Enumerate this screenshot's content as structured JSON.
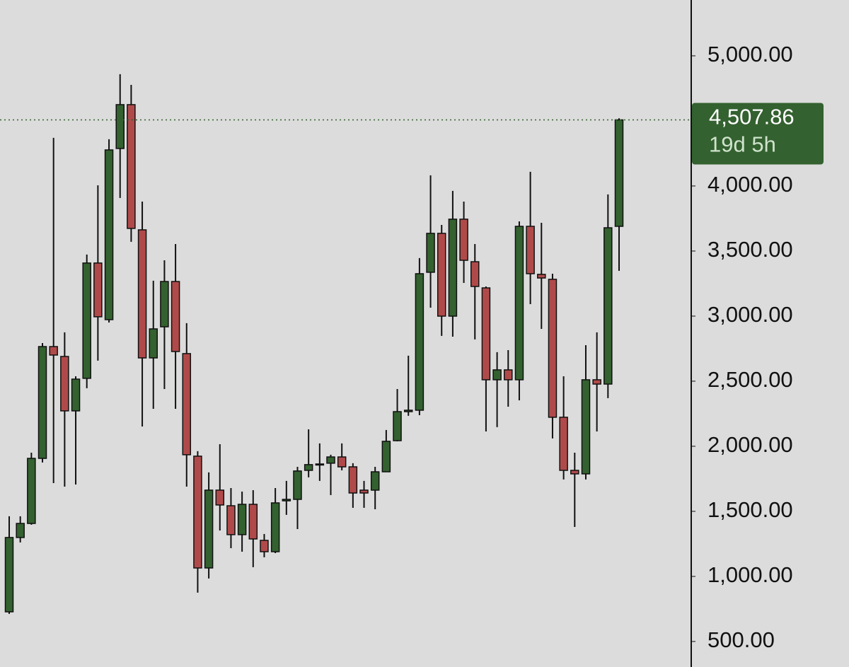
{
  "chart_data": {
    "type": "candlestick",
    "open": [
      728,
      1299,
      1407,
      1907,
      2766,
      2690,
      2272,
      2522,
      3408,
      2973,
      4288,
      4625,
      3663,
      2679,
      2918,
      3266,
      2712,
      1924,
      1065,
      1663,
      1543,
      1321,
      1554,
      1277,
      1190,
      1581,
      1592,
      1815,
      1859,
      1870,
      1918,
      1842,
      1663,
      1663,
      1804,
      2043,
      2266,
      2277,
      3337,
      3636,
      3000,
      3745,
      3418,
      3217,
      2511,
      2587,
      2511,
      3690,
      3321,
      3283,
      2223,
      1815,
      1788,
      2511,
      2478,
      3690
    ],
    "high": [
      1462,
      1462,
      1951,
      2793,
      4370,
      2875,
      2538,
      3473,
      4005,
      4359,
      4859,
      4777,
      3880,
      3272,
      3429,
      3554,
      2946,
      1962,
      1799,
      2016,
      1679,
      1652,
      1663,
      1326,
      1679,
      1734,
      1842,
      2130,
      2022,
      1935,
      2022,
      1870,
      1734,
      1842,
      2125,
      2440,
      2696,
      3446,
      4082,
      3701,
      3962,
      3880,
      3554,
      3228,
      2723,
      2739,
      3728,
      4109,
      3717,
      3326,
      2538,
      1951,
      2777,
      2875,
      3935,
      4520
    ],
    "low": [
      712,
      1261,
      1397,
      1875,
      1717,
      1690,
      1706,
      2446,
      2658,
      2951,
      3908,
      3571,
      2152,
      2288,
      2440,
      2288,
      1690,
      875,
      984,
      1353,
      1217,
      1190,
      1071,
      1147,
      1179,
      1473,
      1364,
      1761,
      1734,
      1625,
      1815,
      1527,
      1527,
      1516,
      1804,
      2038,
      2234,
      2239,
      3065,
      2848,
      2842,
      3255,
      2821,
      2114,
      2147,
      2304,
      2353,
      3092,
      2902,
      2060,
      1745,
      1380,
      1745,
      2114,
      2370,
      3348
    ],
    "close": [
      1299,
      1407,
      1907,
      2766,
      2701,
      2272,
      2516,
      3408,
      2995,
      4277,
      4625,
      3674,
      2679,
      2902,
      3266,
      2728,
      1935,
      1065,
      1663,
      1549,
      1321,
      1554,
      1288,
      1190,
      1565,
      1592,
      1810,
      1859,
      1864,
      1918,
      1842,
      1641,
      1641,
      1804,
      2038,
      2266,
      2277,
      3326,
      3636,
      3000,
      3745,
      3429,
      3228,
      2511,
      2587,
      2511,
      3690,
      3326,
      3293,
      2223,
      1815,
      1788,
      2511,
      2478,
      3679,
      4507.86
    ],
    "up_color": "#33612f",
    "down_color": "#b04a4a",
    "ylim": [
      304,
      5429
    ],
    "yticks": [
      {
        "value": 500,
        "label": "500.00"
      },
      {
        "value": 1000,
        "label": "1,000.00"
      },
      {
        "value": 1500,
        "label": "1,500.00"
      },
      {
        "value": 2000,
        "label": "2,000.00"
      },
      {
        "value": 2500,
        "label": "2,500.00"
      },
      {
        "value": 3000,
        "label": "3,000.00"
      },
      {
        "value": 3500,
        "label": "3,500.00"
      },
      {
        "value": 4000,
        "label": "4,000.00"
      },
      {
        "value": 5000,
        "label": "5,000.00"
      }
    ],
    "last_price": {
      "value": 4507.86,
      "label": "4,507.86"
    },
    "countdown": "19d 5h",
    "price_tag_color": "#33612f"
  }
}
